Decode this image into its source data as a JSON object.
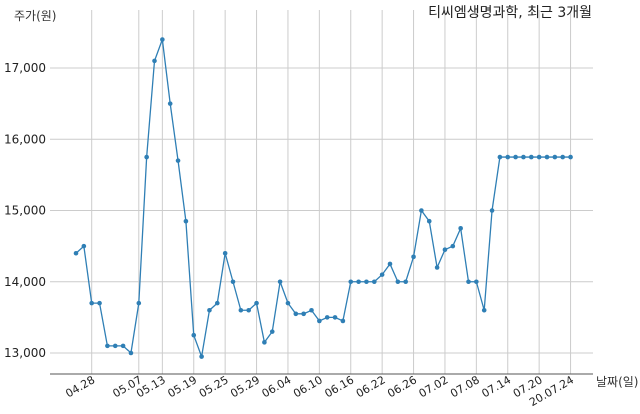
{
  "chart_data": {
    "type": "line",
    "title": "티씨엠생명과학, 최근 3개월",
    "ylabel": "주가(원)",
    "xlabel": "날짜(일)",
    "ylim": [
      12700,
      17500
    ],
    "yticks": [
      13000,
      14000,
      15000,
      16000,
      17000
    ],
    "ytick_labels": [
      "13,000",
      "14,000",
      "15,000",
      "16,000",
      "17,000"
    ],
    "xticks": [
      {
        "index": 2,
        "label": "04.28"
      },
      {
        "index": 8,
        "label": "05.07"
      },
      {
        "index": 11,
        "label": "05.13"
      },
      {
        "index": 15,
        "label": "05.19"
      },
      {
        "index": 19,
        "label": "05.25"
      },
      {
        "index": 23,
        "label": "05.29"
      },
      {
        "index": 27,
        "label": "06.04"
      },
      {
        "index": 31,
        "label": "06.10"
      },
      {
        "index": 35,
        "label": "06.16"
      },
      {
        "index": 39,
        "label": "06.22"
      },
      {
        "index": 43,
        "label": "06.26"
      },
      {
        "index": 47,
        "label": "07.02"
      },
      {
        "index": 51,
        "label": "07.08"
      },
      {
        "index": 55,
        "label": "07.14"
      },
      {
        "index": 59,
        "label": "07.20"
      },
      {
        "index": 63,
        "label": "20.07.24"
      }
    ],
    "grid": true,
    "color": "#2f7fb5",
    "values": [
      14400,
      14500,
      13700,
      13700,
      13100,
      13100,
      13100,
      13000,
      13700,
      15750,
      17100,
      17400,
      16500,
      15700,
      14850,
      13250,
      12950,
      13600,
      13700,
      14400,
      14000,
      13600,
      13600,
      13700,
      13150,
      13300,
      14000,
      13700,
      13550,
      13550,
      13600,
      13450,
      13500,
      13500,
      13450,
      14000,
      14000,
      14000,
      14000,
      14100,
      14250,
      14000,
      14000,
      14350,
      15000,
      14850,
      14200,
      14450,
      14500,
      14750,
      14000,
      14000,
      13600,
      15000,
      15750,
      15750,
      15750,
      15750,
      15750,
      15750,
      15750,
      15750,
      15750,
      15750
    ]
  }
}
